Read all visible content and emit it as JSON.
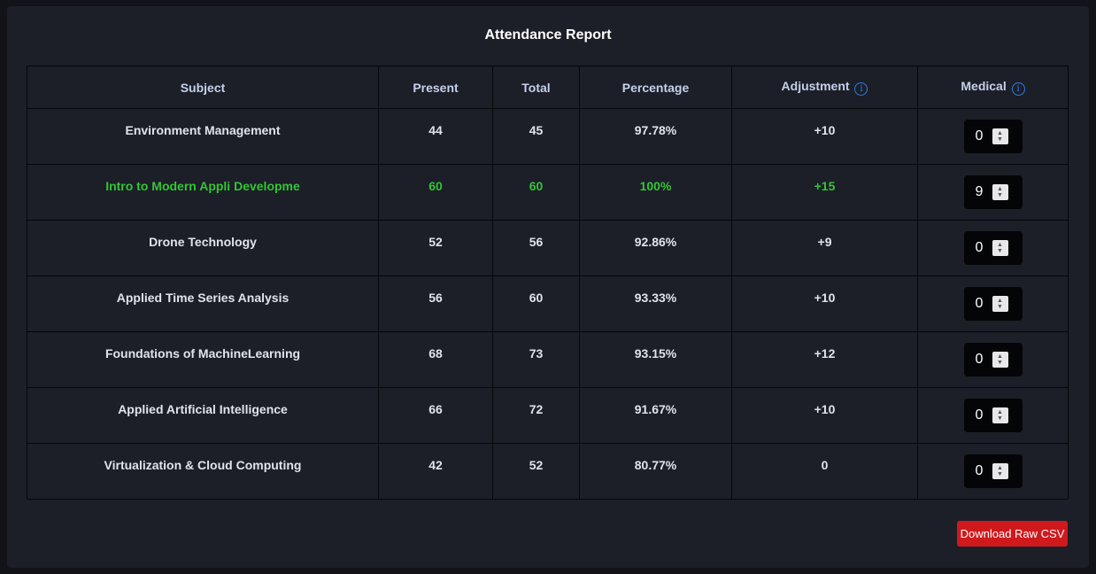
{
  "report": {
    "title": "Attendance Report",
    "columns": {
      "subject": "Subject",
      "present": "Present",
      "total": "Total",
      "percentage": "Percentage",
      "adjustment": "Adjustment",
      "medical": "Medical"
    },
    "info_icon": "info-icon",
    "rows": [
      {
        "subject": "Environment Management",
        "present": "44",
        "total": "45",
        "percentage": "97.78%",
        "adjustment": "+10",
        "medical": "0"
      },
      {
        "subject": "Intro to Modern Appli Developme",
        "present": "60",
        "total": "60",
        "percentage": "100%",
        "adjustment": "+15",
        "medical": "9"
      },
      {
        "subject": "Drone Technology",
        "present": "52",
        "total": "56",
        "percentage": "92.86%",
        "adjustment": "+9",
        "medical": "0"
      },
      {
        "subject": "Applied Time Series Analysis",
        "present": "56",
        "total": "60",
        "percentage": "93.33%",
        "adjustment": "+10",
        "medical": "0"
      },
      {
        "subject": "Foundations of MachineLearning",
        "present": "68",
        "total": "73",
        "percentage": "93.15%",
        "adjustment": "+12",
        "medical": "0"
      },
      {
        "subject": "Applied Artificial Intelligence",
        "present": "66",
        "total": "72",
        "percentage": "91.67%",
        "adjustment": "+10",
        "medical": "0"
      },
      {
        "subject": "Virtualization & Cloud Computing",
        "present": "42",
        "total": "52",
        "percentage": "80.77%",
        "adjustment": "0",
        "medical": "0"
      }
    ]
  },
  "actions": {
    "download_csv_label": "Download Raw CSV"
  },
  "colors": {
    "background": "#111318",
    "panel": "#1c1f28",
    "highlight_green": "#35c435",
    "info_blue": "#2f7de0",
    "button_red": "#d0191d"
  }
}
